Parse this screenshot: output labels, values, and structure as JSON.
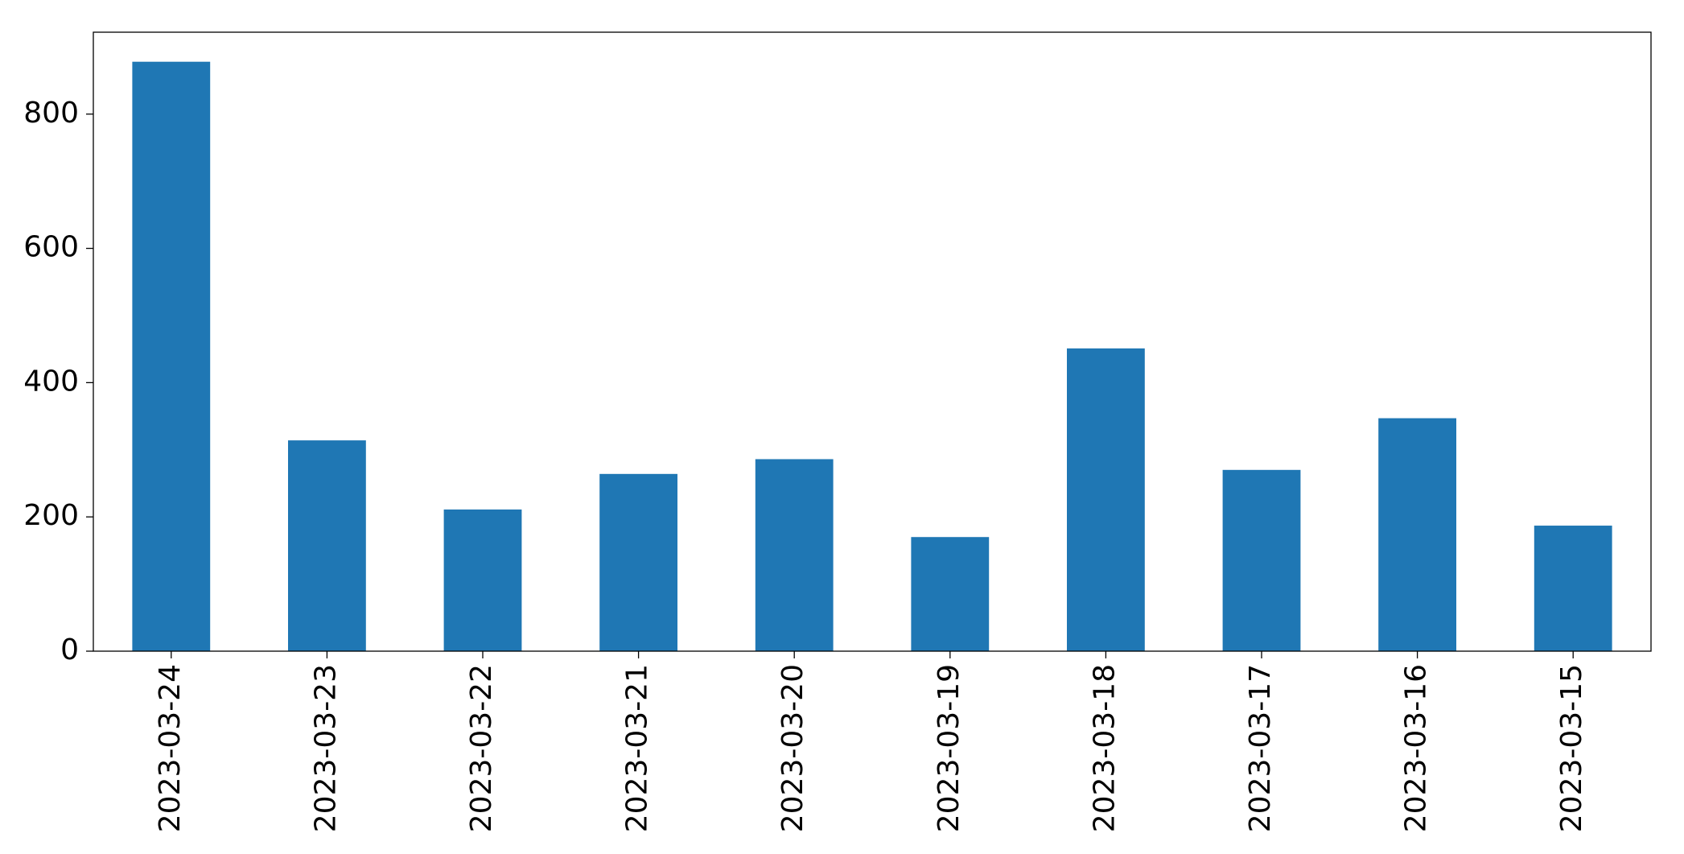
{
  "chart_data": {
    "type": "bar",
    "categories": [
      "2023-03-24",
      "2023-03-23",
      "2023-03-22",
      "2023-03-21",
      "2023-03-20",
      "2023-03-19",
      "2023-03-18",
      "2023-03-17",
      "2023-03-16",
      "2023-03-15"
    ],
    "values": [
      878,
      314,
      211,
      264,
      286,
      170,
      451,
      270,
      347,
      187
    ],
    "color": "#1f77b4",
    "ylim": [
      0,
      922
    ],
    "yticks": [
      0,
      200,
      400,
      600,
      800
    ],
    "grid": false
  }
}
